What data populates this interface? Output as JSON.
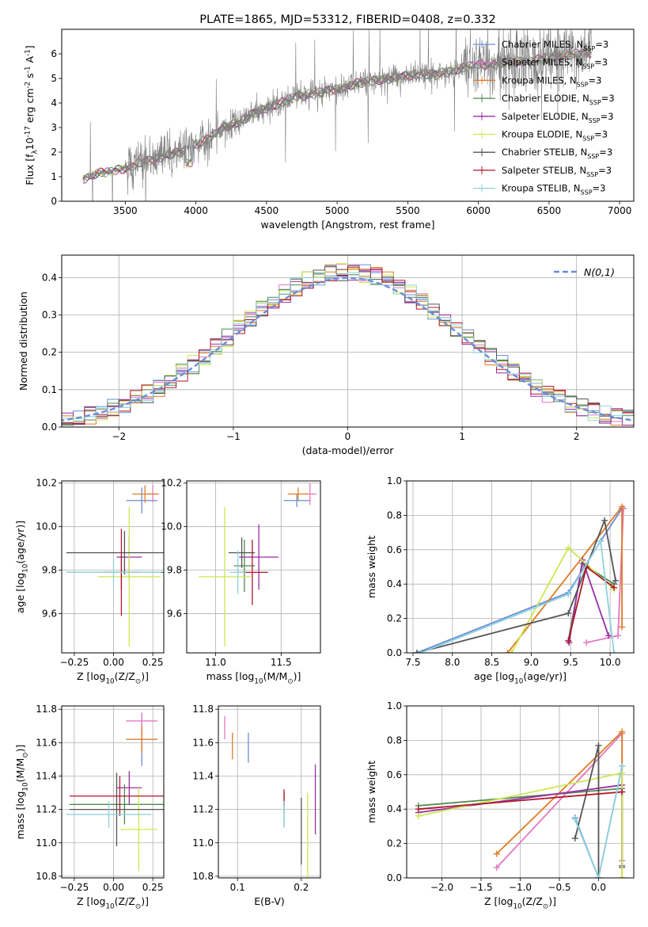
{
  "colors": {
    "chabrier_miles": "#6b8dd6",
    "salpeter_miles": "#e377c2",
    "kroupa_miles": "#e07b23",
    "chabrier_elodie": "#4f8a4f",
    "salpeter_elodie": "#9a2fa5",
    "kroupa_elodie": "#cbe84f",
    "chabrier_stelib": "#555555",
    "salpeter_stelib": "#b0182c",
    "kroupa_stelib": "#8fd3de",
    "spectrum": "#808080",
    "normal": "#6b8dd6"
  },
  "chart_data": [
    {
      "id": "spectrum",
      "type": "line",
      "title": "PLATE=1865, MJD=53312, FIBERID=0408, z=0.332",
      "xlabel": "wavelength [Angstrom, rest frame]",
      "ylabel": "Flux [f$_\\lambda$10$^{-17}$ erg cm$^{-2}$ s$^{-1}$ A$^{-1}$]",
      "xlim": [
        3050,
        7100
      ],
      "ylim": [
        0,
        7
      ],
      "xticks": [
        "3500",
        "4000",
        "4500",
        "5000",
        "5500",
        "6000",
        "6500",
        "7000"
      ],
      "yticks": [
        "0",
        "1",
        "2",
        "3",
        "4",
        "5",
        "6"
      ],
      "legend_position": "top-right",
      "legend": [
        {
          "label": "Chabrier MILES, N$_{SSP}$=3",
          "color": "#6b8dd6"
        },
        {
          "label": "Salpeter MILES, N$_{SSP}$=3",
          "color": "#e377c2"
        },
        {
          "label": "Kroupa MILES, N$_{SSP}$=3",
          "color": "#e07b23"
        },
        {
          "label": "Chabrier ELODIE, N$_{SSP}$=3",
          "color": "#4f8a4f"
        },
        {
          "label": "Salpeter ELODIE, N$_{SSP}$=3",
          "color": "#9a2fa5"
        },
        {
          "label": "Kroupa ELODIE, N$_{SSP}$=3",
          "color": "#cbe84f"
        },
        {
          "label": "Chabrier STELIB, N$_{SSP}$=3",
          "color": "#555555"
        },
        {
          "label": "Salpeter STELIB, N$_{SSP}$=3",
          "color": "#b0182c"
        },
        {
          "label": "Kroupa STELIB, N$_{SSP}$=3",
          "color": "#8fd3de"
        }
      ],
      "continuum": {
        "x": [
          3200,
          3300,
          3400,
          3500,
          3600,
          3700,
          3800,
          3900,
          4000,
          4100,
          4200,
          4300,
          4400,
          4500,
          4600,
          4700,
          4800,
          4900,
          5000,
          5100,
          5200,
          5300,
          5400,
          5500,
          5600,
          5700,
          5800,
          5900,
          6000,
          6100,
          6200,
          6300,
          6400,
          6500,
          6600,
          6700,
          6800
        ],
        "y": [
          0.9,
          1.15,
          1.2,
          1.35,
          1.55,
          1.7,
          1.9,
          2.0,
          2.3,
          2.6,
          3.0,
          3.2,
          3.55,
          3.8,
          4.0,
          4.25,
          4.35,
          4.45,
          4.55,
          4.75,
          4.85,
          4.95,
          5.0,
          5.1,
          5.2,
          5.15,
          5.3,
          5.45,
          5.55,
          5.6,
          5.65,
          5.7,
          5.75,
          5.85,
          5.95,
          6.0,
          6.05
        ]
      }
    },
    {
      "id": "residuals",
      "type": "bar",
      "xlabel": "(data-model)/error",
      "ylabel": "Normed distribution",
      "xlim": [
        -2.5,
        2.5
      ],
      "ylim": [
        0,
        0.46
      ],
      "xticks": [
        "−2",
        "−1",
        "0",
        "1",
        "2"
      ],
      "yticks": [
        "0.0",
        "0.1",
        "0.2",
        "0.3",
        "0.4"
      ],
      "legend_position": "top-right",
      "legend": [
        {
          "label": "$\\mathcal{N}(0,1)$",
          "color": "#6b8dd6"
        }
      ],
      "bin_width": 0.1
    },
    {
      "id": "age_vs_Z",
      "type": "scatter",
      "xlabel": "Z [log$_{10}$(Z/Z$_\\odot$)]",
      "ylabel": "age  [log$_{10}$(age/yr)]",
      "xlim": [
        -0.33,
        0.32
      ],
      "ylim": [
        9.42,
        10.21
      ],
      "xticks": [
        "−0.25",
        "0.00",
        "0.25"
      ],
      "yticks": [
        "9.6",
        "9.8",
        "10.0",
        "10.2"
      ],
      "series": [
        {
          "color": "#6b8dd6",
          "x": 0.18,
          "y": 10.12,
          "xerr": 0.1,
          "yerr": 0.06
        },
        {
          "color": "#e377c2",
          "x": 0.25,
          "y": 10.15,
          "xerr": 0.04,
          "yerr": 0.04
        },
        {
          "color": "#e07b23",
          "x": 0.2,
          "y": 10.15,
          "xerr": 0.08,
          "yerr": 0.04
        },
        {
          "color": "#4f8a4f",
          "x": 0.05,
          "y": 9.79,
          "xerr": 0.35,
          "yerr": 0.08
        },
        {
          "color": "#9a2fa5",
          "x": 0.1,
          "y": 9.86,
          "xerr": 0.08,
          "yerr": 0.1
        },
        {
          "color": "#cbe84f",
          "x": 0.1,
          "y": 9.77,
          "xerr": 0.2,
          "yerr": 0.32
        },
        {
          "color": "#555555",
          "x": 0.07,
          "y": 9.88,
          "xerr": 0.37,
          "yerr": 0.1
        },
        {
          "color": "#b0182c",
          "x": 0.05,
          "y": 9.79,
          "xerr": 0.12,
          "yerr": 0.2
        },
        {
          "color": "#8fd3de",
          "x": 0.0,
          "y": 9.79,
          "xerr": 0.3,
          "yerr": 0.06
        }
      ]
    },
    {
      "id": "age_vs_mass",
      "type": "scatter",
      "xlabel": "mass [log$_{10}$(M/M$_\\odot$)]",
      "ylabel": "",
      "xlim": [
        10.78,
        11.8
      ],
      "ylim": [
        9.42,
        10.21
      ],
      "xticks": [
        "11.0",
        "11.5"
      ],
      "yticks": [
        "9.6",
        "9.8",
        "10.0",
        "10.2"
      ],
      "series": [
        {
          "color": "#6b8dd6",
          "x": 11.62,
          "y": 10.12,
          "xerr": 0.1,
          "yerr": 0.03
        },
        {
          "color": "#e377c2",
          "x": 11.72,
          "y": 10.15,
          "xerr": 0.05,
          "yerr": 0.05
        },
        {
          "color": "#e07b23",
          "x": 11.63,
          "y": 10.15,
          "xerr": 0.08,
          "yerr": 0.03
        },
        {
          "color": "#4f8a4f",
          "x": 11.22,
          "y": 9.82,
          "xerr": 0.08,
          "yerr": 0.12
        },
        {
          "color": "#9a2fa5",
          "x": 11.33,
          "y": 9.86,
          "xerr": 0.15,
          "yerr": 0.15
        },
        {
          "color": "#cbe84f",
          "x": 11.07,
          "y": 9.77,
          "xerr": 0.2,
          "yerr": 0.32
        },
        {
          "color": "#555555",
          "x": 11.2,
          "y": 9.88,
          "xerr": 0.1,
          "yerr": 0.07
        },
        {
          "color": "#b0182c",
          "x": 11.28,
          "y": 9.79,
          "xerr": 0.12,
          "yerr": 0.15
        },
        {
          "color": "#8fd3de",
          "x": 11.17,
          "y": 9.79,
          "xerr": 0.06,
          "yerr": 0.1
        }
      ]
    },
    {
      "id": "weight_vs_age",
      "type": "line",
      "xlabel": "age  [log$_{10}$(age/yr)]",
      "ylabel": "mass weight",
      "xlim": [
        7.42,
        10.3
      ],
      "ylim": [
        0,
        1.0
      ],
      "xticks": [
        "7.5",
        "8.0",
        "8.5",
        "9.0",
        "9.5",
        "10.0"
      ],
      "yticks": [
        "0.0",
        "0.2",
        "0.4",
        "0.6",
        "0.8",
        "1.0"
      ],
      "series": [
        {
          "color": "#6b8dd6",
          "x": [
            7.55,
            9.47,
            9.88,
            10.15
          ],
          "y": [
            0.0,
            0.35,
            0.65,
            0.84
          ]
        },
        {
          "color": "#e377c2",
          "x": [
            9.7,
            10.1,
            10.17
          ],
          "y": [
            0.06,
            0.1,
            0.84
          ]
        },
        {
          "color": "#e07b23",
          "x": [
            8.7,
            10.15,
            10.15
          ],
          "y": [
            0.0,
            0.85,
            0.15
          ]
        },
        {
          "color": "#4f8a4f",
          "x": [
            9.47,
            9.65,
            10.05
          ],
          "y": [
            0.07,
            0.52,
            0.4
          ]
        },
        {
          "color": "#9a2fa5",
          "x": [
            9.48,
            9.65,
            9.98
          ],
          "y": [
            0.06,
            0.54,
            0.1
          ]
        },
        {
          "color": "#cbe84f",
          "x": [
            8.75,
            9.47,
            10.05
          ],
          "y": [
            0.0,
            0.61,
            0.37
          ]
        },
        {
          "color": "#555555",
          "x": [
            7.55,
            9.47,
            9.93,
            10.07
          ],
          "y": [
            0.0,
            0.23,
            0.77,
            0.42
          ]
        },
        {
          "color": "#b0182c",
          "x": [
            9.47,
            9.7,
            10.05
          ],
          "y": [
            0.07,
            0.5,
            0.38
          ]
        },
        {
          "color": "#8fd3de",
          "x": [
            7.6,
            9.47,
            9.88,
            10.05
          ],
          "y": [
            0.0,
            0.34,
            0.65,
            0.0
          ]
        }
      ]
    },
    {
      "id": "mass_vs_Z",
      "type": "scatter",
      "xlabel": "Z [log$_{10}$(Z/Z$_\\odot$)]",
      "ylabel": "mass [log$_{10}$(M/M$_\\odot$)]",
      "xlim": [
        -0.33,
        0.32
      ],
      "ylim": [
        10.79,
        11.82
      ],
      "xticks": [
        "−0.25",
        "0.00",
        "0.25"
      ],
      "yticks": [
        "10.8",
        "11.0",
        "11.2",
        "11.4",
        "11.6",
        "11.8"
      ],
      "series": [
        {
          "color": "#6b8dd6",
          "x": 0.18,
          "y": 11.62,
          "xerr": 0.1,
          "yerr": 0.16
        },
        {
          "color": "#e377c2",
          "x": 0.18,
          "y": 11.73,
          "xerr": 0.1,
          "yerr": 0.05
        },
        {
          "color": "#e07b23",
          "x": 0.18,
          "y": 11.62,
          "xerr": 0.1,
          "yerr": 0.08
        },
        {
          "color": "#4f8a4f",
          "x": 0.07,
          "y": 11.23,
          "xerr": 0.35,
          "yerr": 0.12
        },
        {
          "color": "#9a2fa5",
          "x": 0.1,
          "y": 11.33,
          "xerr": 0.08,
          "yerr": 0.1
        },
        {
          "color": "#cbe84f",
          "x": 0.16,
          "y": 11.08,
          "xerr": 0.12,
          "yerr": 0.25
        },
        {
          "color": "#555555",
          "x": 0.02,
          "y": 11.2,
          "xerr": 0.3,
          "yerr": 0.22
        },
        {
          "color": "#b0182c",
          "x": 0.04,
          "y": 11.28,
          "xerr": 0.32,
          "yerr": 0.12
        },
        {
          "color": "#8fd3de",
          "x": -0.03,
          "y": 11.17,
          "xerr": 0.27,
          "yerr": 0.08
        }
      ]
    },
    {
      "id": "mass_vs_ebv",
      "type": "scatter",
      "xlabel": "E(B-V)",
      "ylabel": "",
      "xlim": [
        0.07,
        0.23
      ],
      "ylim": [
        10.79,
        11.82
      ],
      "xticks": [
        "0.1",
        "0.2"
      ],
      "yticks": [
        "10.8",
        "11.0",
        "11.2",
        "11.4",
        "11.6",
        "11.8"
      ],
      "series": [
        {
          "color": "#6b8dd6",
          "x": 0.117,
          "y": 11.57,
          "yerr": 0.09
        },
        {
          "color": "#e377c2",
          "x": 0.08,
          "y": 11.69,
          "yerr": 0.07
        },
        {
          "color": "#e07b23",
          "x": 0.092,
          "y": 11.58,
          "yerr": 0.08
        },
        {
          "color": "#4f8a4f",
          "x": 0.173,
          "y": 11.2,
          "yerr": 0.1
        },
        {
          "color": "#9a2fa5",
          "x": 0.222,
          "y": 11.26,
          "yerr": 0.21
        },
        {
          "color": "#cbe84f",
          "x": 0.21,
          "y": 11.04,
          "yerr": 0.26
        },
        {
          "color": "#555555",
          "x": 0.2,
          "y": 11.07,
          "yerr": 0.2
        },
        {
          "color": "#b0182c",
          "x": 0.173,
          "y": 11.27,
          "yerr": 0.05
        },
        {
          "color": "#8fd3de",
          "x": 0.173,
          "y": 11.17,
          "yerr": 0.08
        }
      ]
    },
    {
      "id": "weight_vs_Z",
      "type": "line",
      "xlabel": "Z [log$_{10}$(Z/Z$_\\odot$)]",
      "ylabel": "mass weight",
      "xlim": [
        -2.45,
        0.45
      ],
      "ylim": [
        0,
        1.0
      ],
      "xticks": [
        "−2.0",
        "−1.5",
        "−1.0",
        "−0.5",
        "0.0"
      ],
      "yticks": [
        "0.0",
        "0.2",
        "0.4",
        "0.6",
        "0.8",
        "1.0"
      ],
      "series": [
        {
          "color": "#6b8dd6",
          "x": [
            -0.3,
            0.0,
            0.3
          ],
          "y": [
            0.35,
            0.0,
            0.65
          ]
        },
        {
          "color": "#e377c2",
          "x": [
            -1.3,
            0.3,
            0.3
          ],
          "y": [
            0.06,
            0.84,
            0.1
          ]
        },
        {
          "color": "#e07b23",
          "x": [
            -1.3,
            0.3,
            0.3
          ],
          "y": [
            0.14,
            0.85,
            0.0
          ]
        },
        {
          "color": "#4f8a4f",
          "x": [
            -2.3,
            0.3,
            0.3
          ],
          "y": [
            0.42,
            0.52,
            0.06
          ]
        },
        {
          "color": "#9a2fa5",
          "x": [
            -2.3,
            0.3,
            0.3
          ],
          "y": [
            0.38,
            0.54,
            0.07
          ]
        },
        {
          "color": "#cbe84f",
          "x": [
            -2.3,
            0.3,
            0.3
          ],
          "y": [
            0.36,
            0.61,
            0.0
          ]
        },
        {
          "color": "#555555",
          "x": [
            -0.3,
            0.0,
            0.0
          ],
          "y": [
            0.23,
            0.77,
            0.0
          ]
        },
        {
          "color": "#b0182c",
          "x": [
            -2.3,
            0.3
          ],
          "y": [
            0.4,
            0.5
          ]
        },
        {
          "color": "#8fd3de",
          "x": [
            -0.3,
            0.0,
            0.3
          ],
          "y": [
            0.34,
            0.0,
            0.65
          ]
        }
      ]
    }
  ]
}
